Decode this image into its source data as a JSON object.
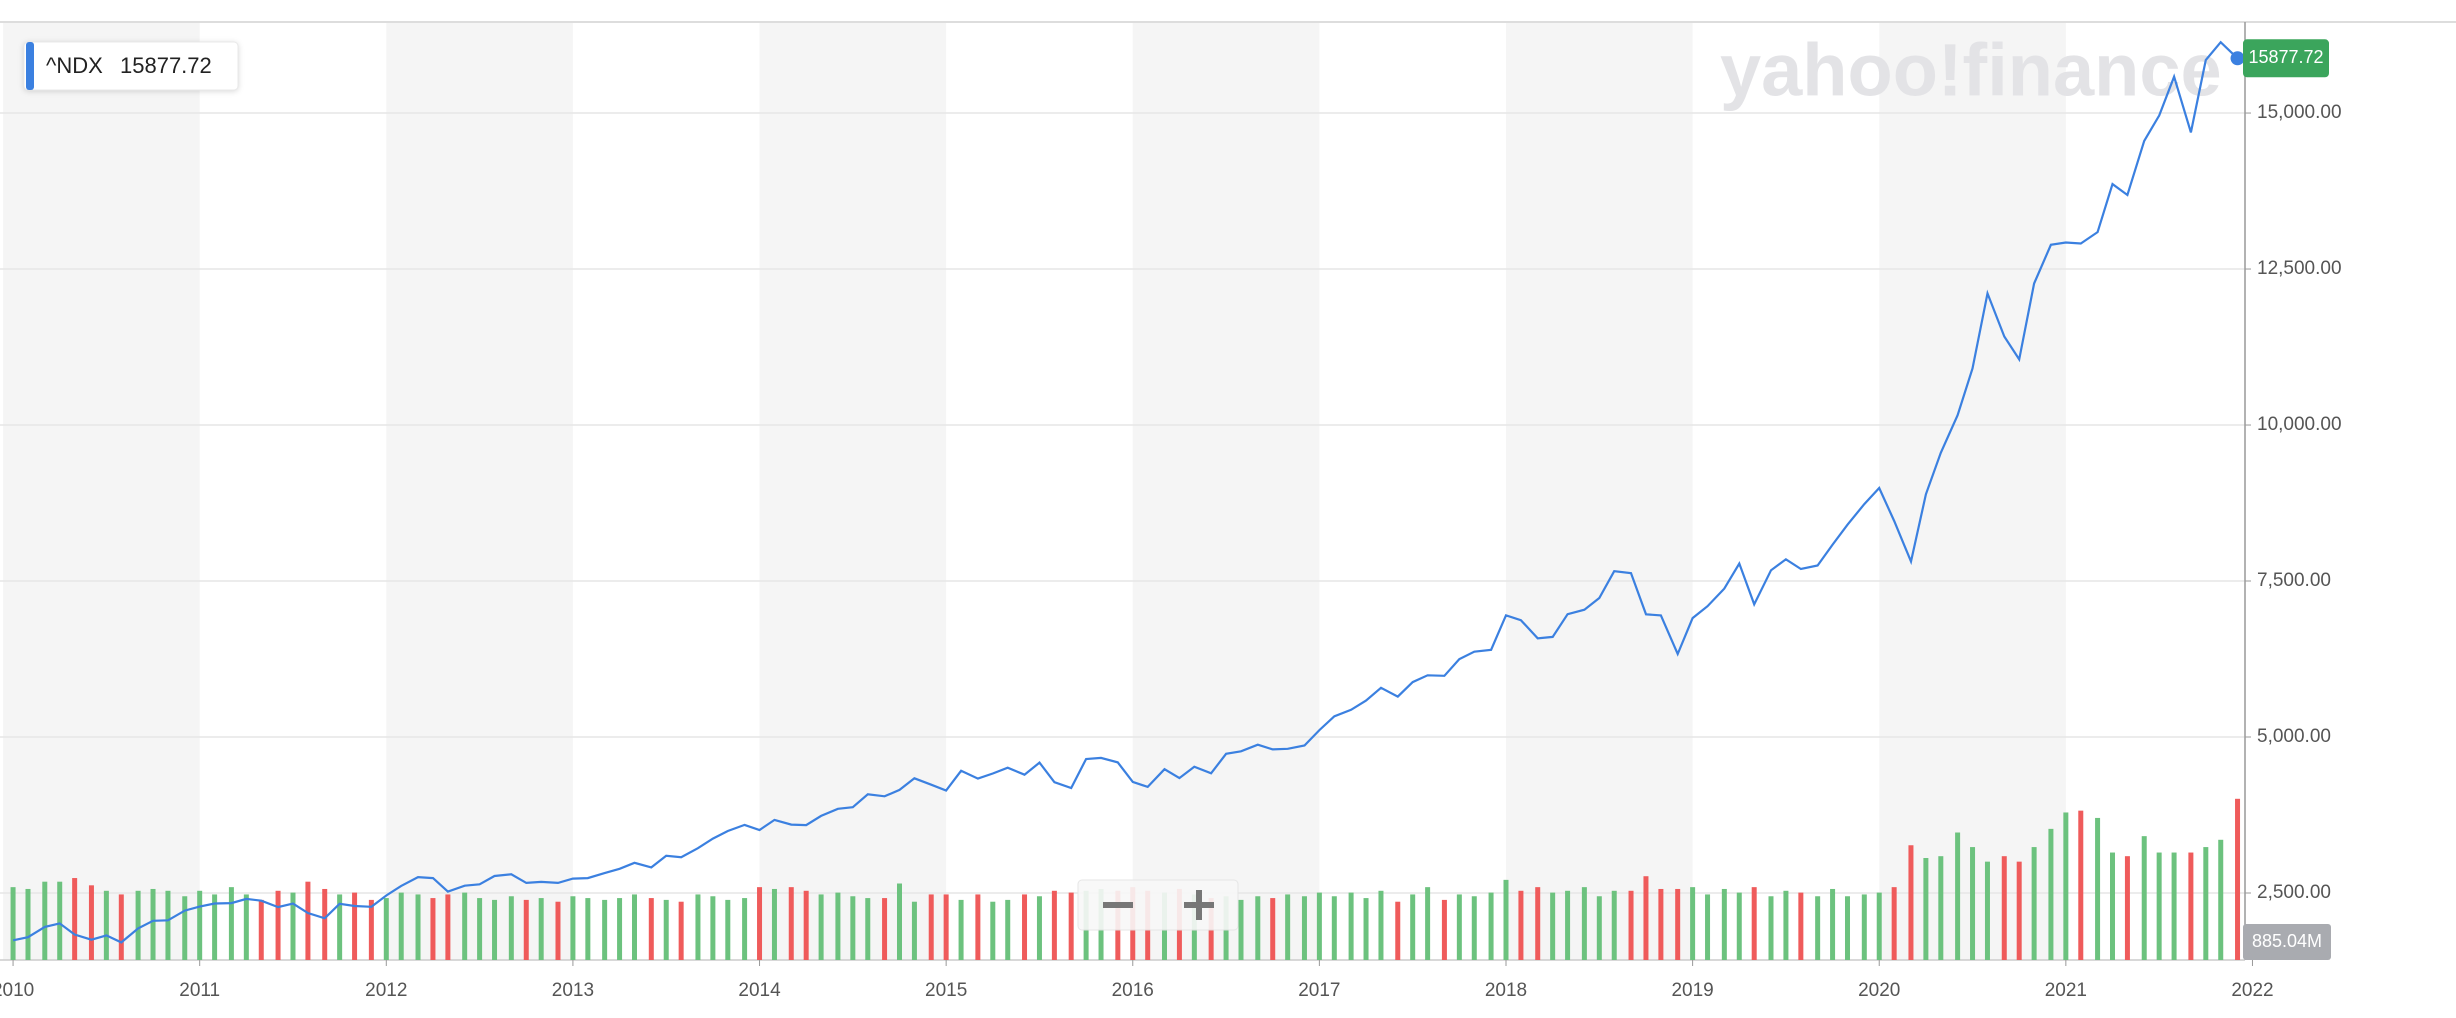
{
  "chart_data": {
    "type": "line",
    "watermark": "yahoo!finance",
    "x": [
      2010,
      2010.08,
      2010.17,
      2010.25,
      2010.33,
      2010.42,
      2010.5,
      2010.58,
      2010.67,
      2010.75,
      2010.83,
      2010.92,
      2011,
      2011.08,
      2011.17,
      2011.25,
      2011.33,
      2011.42,
      2011.5,
      2011.58,
      2011.67,
      2011.75,
      2011.83,
      2011.92,
      2012,
      2012.08,
      2012.17,
      2012.25,
      2012.33,
      2012.42,
      2012.5,
      2012.58,
      2012.67,
      2012.75,
      2012.83,
      2012.92,
      2013,
      2013.08,
      2013.17,
      2013.25,
      2013.33,
      2013.42,
      2013.5,
      2013.58,
      2013.67,
      2013.75,
      2013.83,
      2013.92,
      2014,
      2014.08,
      2014.17,
      2014.25,
      2014.33,
      2014.42,
      2014.5,
      2014.58,
      2014.67,
      2014.75,
      2014.83,
      2014.92,
      2015,
      2015.08,
      2015.17,
      2015.25,
      2015.33,
      2015.42,
      2015.5,
      2015.58,
      2015.67,
      2015.75,
      2015.83,
      2015.92,
      2016,
      2016.08,
      2016.17,
      2016.25,
      2016.33,
      2016.42,
      2016.5,
      2016.58,
      2016.67,
      2016.75,
      2016.83,
      2016.92,
      2017,
      2017.08,
      2017.17,
      2017.25,
      2017.33,
      2017.42,
      2017.5,
      2017.58,
      2017.67,
      2017.75,
      2017.83,
      2017.92,
      2018,
      2018.08,
      2018.17,
      2018.25,
      2018.33,
      2018.42,
      2018.5,
      2018.58,
      2018.67,
      2018.75,
      2018.83,
      2018.92,
      2019,
      2019.08,
      2019.17,
      2019.25,
      2019.33,
      2019.42,
      2019.5,
      2019.58,
      2019.67,
      2019.75,
      2019.83,
      2019.92,
      2020,
      2020.08,
      2020.17,
      2020.25,
      2020.33,
      2020.42,
      2020.5,
      2020.58,
      2020.67,
      2020.75,
      2020.83,
      2020.92,
      2021,
      2021.08,
      2021.17,
      2021.25,
      2021.33,
      2021.42,
      2021.5,
      2021.58,
      2021.67,
      2021.75,
      2021.83,
      2021.92
    ],
    "series": [
      {
        "name": "^NDX",
        "color": "#3b80e0",
        "values": [
          1741,
          1791,
          1957,
          2012,
          1834,
          1751,
          1820,
          1708,
          1933,
          2054,
          2062,
          2218,
          2282,
          2331,
          2338,
          2405,
          2377,
          2274,
          2330,
          2180,
          2095,
          2327,
          2291,
          2278,
          2459,
          2614,
          2755,
          2738,
          2523,
          2616,
          2640,
          2773,
          2800,
          2661,
          2677,
          2661,
          2731,
          2739,
          2819,
          2887,
          2983,
          2910,
          3096,
          3073,
          3218,
          3372,
          3493,
          3592,
          3509,
          3672,
          3596,
          3588,
          3736,
          3850,
          3875,
          4082,
          4050,
          4152,
          4338,
          4236,
          4142,
          4458,
          4334,
          4415,
          4508,
          4396,
          4589,
          4275,
          4182,
          4648,
          4665,
          4593,
          4280,
          4201,
          4484,
          4341,
          4524,
          4418,
          4731,
          4771,
          4876,
          4801,
          4811,
          4863,
          5111,
          5331,
          5436,
          5583,
          5788,
          5647,
          5880,
          5988,
          5980,
          6248,
          6367,
          6397,
          6950,
          6872,
          6581,
          6605,
          6968,
          7040,
          7228,
          7657,
          7627,
          6967,
          6949,
          6330,
          6906,
          7097,
          7378,
          7781,
          7127,
          7671,
          7848,
          7692,
          7749,
          8083,
          8403,
          8733,
          8991,
          8462,
          7813,
          8889,
          9555,
          10157,
          10906,
          12110,
          11418,
          11052,
          12268,
          12888,
          12925,
          12909,
          13091,
          13861,
          13687,
          14554,
          14960,
          15583,
          14690,
          15850,
          16135,
          15877.72
        ]
      },
      {
        "axis": "y2",
        "up_color": "#6cc27e",
        "down_color": "#ef5b5b",
        "last_label": "885.04M",
        "values": [
          400,
          390,
          430,
          430,
          450,
          410,
          380,
          360,
          380,
          390,
          380,
          350,
          380,
          360,
          400,
          360,
          330,
          380,
          370,
          430,
          390,
          360,
          370,
          330,
          340,
          370,
          360,
          340,
          360,
          370,
          340,
          330,
          350,
          330,
          340,
          320,
          350,
          340,
          330,
          340,
          360,
          340,
          330,
          320,
          360,
          350,
          330,
          340,
          400,
          390,
          400,
          380,
          360,
          370,
          350,
          340,
          340,
          420,
          320,
          360,
          360,
          330,
          360,
          320,
          330,
          360,
          350,
          380,
          370,
          380,
          390,
          380,
          400,
          380,
          370,
          390,
          360,
          340,
          350,
          330,
          350,
          340,
          360,
          350,
          370,
          350,
          370,
          340,
          380,
          320,
          360,
          400,
          330,
          360,
          350,
          370,
          440,
          380,
          400,
          370,
          380,
          400,
          350,
          380,
          380,
          460,
          390,
          390,
          400,
          360,
          390,
          370,
          400,
          350,
          380,
          370,
          350,
          390,
          350,
          360,
          370,
          400,
          630,
          560,
          570,
          700,
          620,
          540,
          570,
          540,
          620,
          720,
          810,
          820,
          780,
          590,
          570,
          680,
          590,
          590,
          590,
          620,
          660,
          885.04
        ]
      }
    ],
    "xlim": [
      2009.93,
      2021.96
    ],
    "xticks": [
      2010,
      2011,
      2012,
      2013,
      2014,
      2015,
      2016,
      2017,
      2018,
      2019,
      2020,
      2021,
      2022
    ],
    "ylim": [
      1426,
      16459
    ],
    "yticks": [
      {
        "value": 2500,
        "label": "2,500.00"
      },
      {
        "value": 5000,
        "label": "5,000.00"
      },
      {
        "value": 7500,
        "label": "7,500.00"
      },
      {
        "value": 10000,
        "label": "10,000.00"
      },
      {
        "value": 12500,
        "label": "12,500.00"
      },
      {
        "value": 15000,
        "label": "15,000.00"
      }
    ],
    "y2lim": [
      0,
      5150
    ],
    "grid": true
  }
}
